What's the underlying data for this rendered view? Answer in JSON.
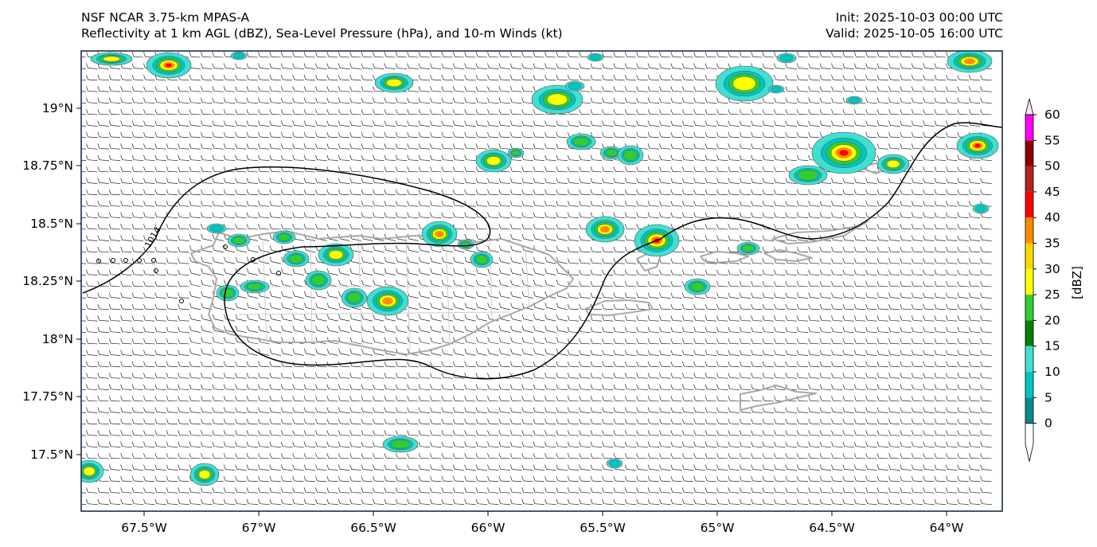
{
  "header": {
    "model": "NSF NCAR 3.75-km MPAS-A",
    "fields": "Reflectivity at 1 km AGL (dBZ), Sea-Level Pressure (hPa), and 10-m Winds (kt)",
    "init": "Init: 2025-10-03 00:00 UTC",
    "valid": "Valid: 2025-10-05 16:00 UTC"
  },
  "map": {
    "lon_range": [
      -67.75,
      -63.75
    ],
    "lat_range": [
      17.25,
      19.25
    ],
    "lon_ticks": [
      "67.5°W",
      "67°W",
      "66.5°W",
      "66°W",
      "65.5°W",
      "65°W",
      "64.5°W",
      "64°W"
    ],
    "lat_ticks": [
      "19°N",
      "18.75°N",
      "18.5°N",
      "18.25°N",
      "18°N",
      "17.75°N",
      "17.5°N"
    ],
    "isobar_label": "1014",
    "colors": {
      "coast": "#a8a8a8",
      "isobar": "#000000",
      "barb": "#000000"
    }
  },
  "colorbar": {
    "label": "[dBZ]",
    "ticks": [
      "0",
      "5",
      "10",
      "15",
      "20",
      "25",
      "30",
      "35",
      "40",
      "45",
      "50",
      "55",
      "60"
    ],
    "colors": [
      "#008b8b",
      "#00c4c4",
      "#40e0d0",
      "#008000",
      "#32cd32",
      "#ffff00",
      "#ffd700",
      "#ff8c00",
      "#ff0000",
      "#b22222",
      "#8b0000",
      "#ff00ff",
      "#ffe4e1"
    ]
  }
}
